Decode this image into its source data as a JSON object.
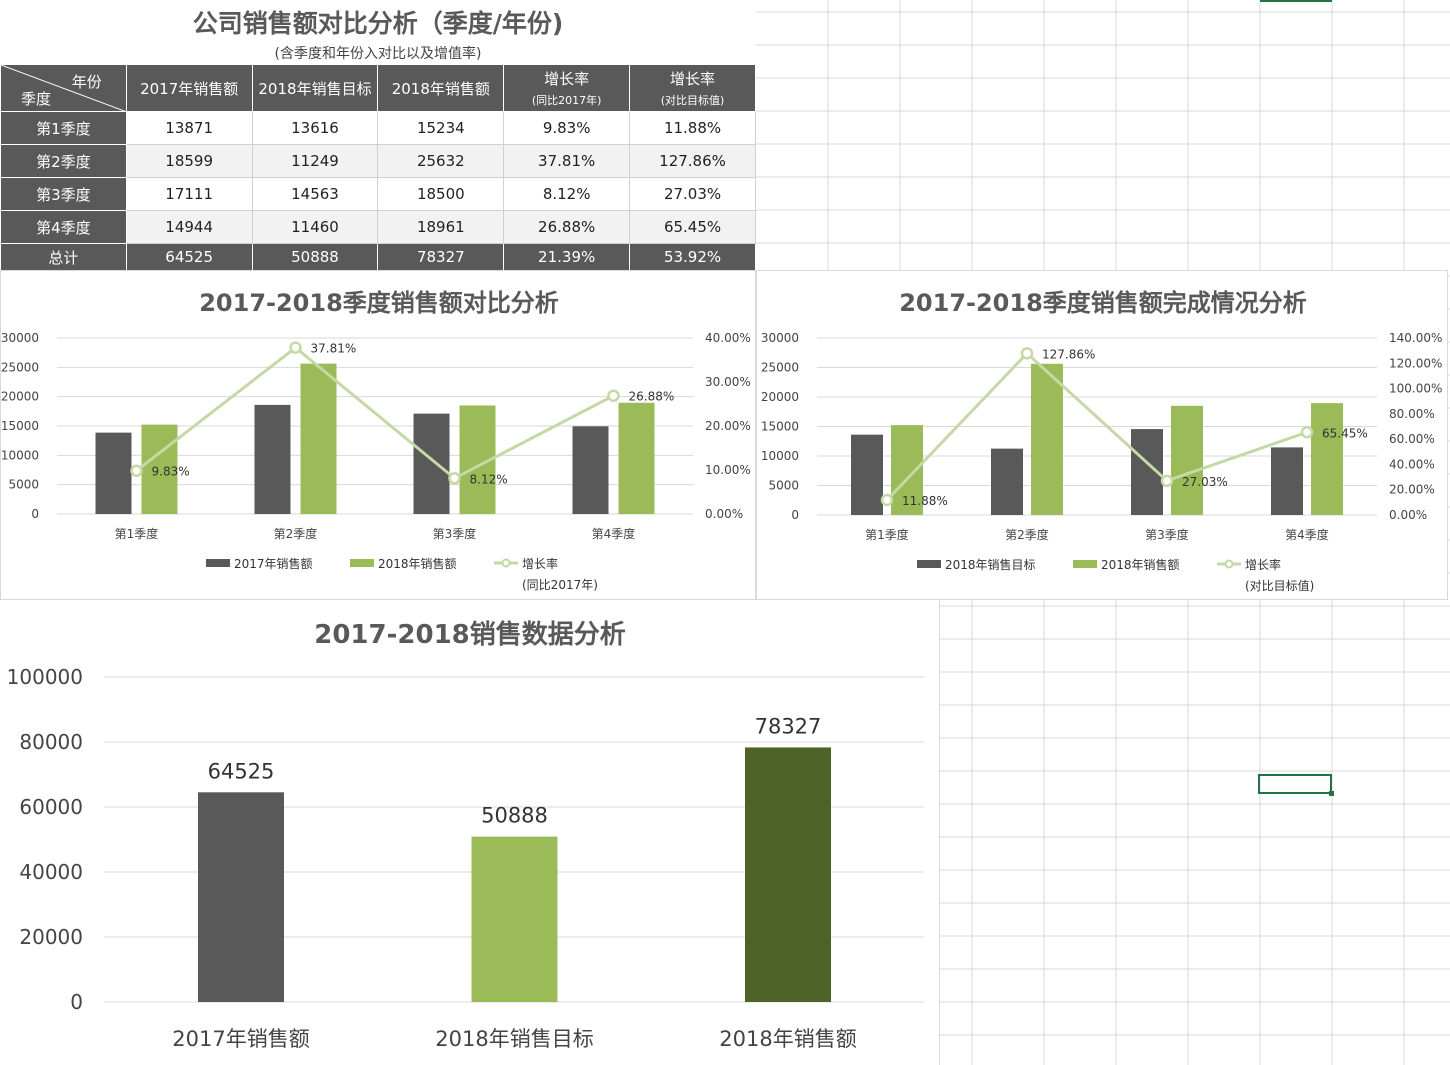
{
  "report": {
    "title": "公司销售额对比分析（季度/年份)",
    "subtitle": "(含季度和年份入对比以及增值率)"
  },
  "table": {
    "corner_top": "年份",
    "corner_bottom": "季度",
    "headers": [
      {
        "main": "2017年销售额",
        "sub": ""
      },
      {
        "main": "2018年销售目标",
        "sub": ""
      },
      {
        "main": "2018年销售额",
        "sub": ""
      },
      {
        "main": "增长率",
        "sub": "(同比2017年)"
      },
      {
        "main": "增长率",
        "sub": "(对比目标值)"
      }
    ],
    "rows": [
      {
        "label": "第1季度",
        "cells": [
          "13871",
          "13616",
          "15234",
          "9.83%",
          "11.88%"
        ]
      },
      {
        "label": "第2季度",
        "cells": [
          "18599",
          "11249",
          "25632",
          "37.81%",
          "127.86%"
        ]
      },
      {
        "label": "第3季度",
        "cells": [
          "17111",
          "14563",
          "18500",
          "8.12%",
          "27.03%"
        ]
      },
      {
        "label": "第4季度",
        "cells": [
          "14944",
          "11460",
          "18961",
          "26.88%",
          "65.45%"
        ]
      }
    ],
    "total": {
      "label": "总计",
      "cells": [
        "64525",
        "50888",
        "78327",
        "21.39%",
        "53.92%"
      ]
    }
  },
  "colors": {
    "dark": "#595959",
    "green": "#9bbb59",
    "line": "#c5d9a5",
    "darkgreen": "#4f6228",
    "selection": "#217346"
  },
  "chart_data": [
    {
      "type": "bar",
      "title": "2017-2018季度销售额对比分析",
      "categories": [
        "第1季度",
        "第2季度",
        "第3季度",
        "第4季度"
      ],
      "series": [
        {
          "name": "2017年销售额",
          "values": [
            13871,
            18599,
            17111,
            14944
          ],
          "kind": "bar"
        },
        {
          "name": "2018年销售额",
          "values": [
            15234,
            25632,
            18500,
            18961
          ],
          "kind": "bar"
        },
        {
          "name": "增长率",
          "values": [
            9.83,
            37.81,
            8.12,
            26.88
          ],
          "kind": "line",
          "axis": "right",
          "labels": [
            "9.83%",
            "37.81%",
            "8.12%",
            "26.88%"
          ]
        }
      ],
      "legend_line_note": "(同比2017年)",
      "ylim": [
        0,
        30000
      ],
      "yticks": [
        "30000",
        "25000",
        "20000",
        "15000",
        "10000",
        "5000",
        "0"
      ],
      "y2lim": [
        0,
        40
      ],
      "y2ticks": [
        "40.00%",
        "30.00%",
        "20.00%",
        "10.00%",
        "0.00%"
      ],
      "grid": true,
      "legend_position": "bottom"
    },
    {
      "type": "bar",
      "title": "2017-2018季度销售额完成情况分析",
      "categories": [
        "第1季度",
        "第2季度",
        "第3季度",
        "第4季度"
      ],
      "series": [
        {
          "name": "2018年销售目标",
          "values": [
            13616,
            11249,
            14563,
            11460
          ],
          "kind": "bar"
        },
        {
          "name": "2018年销售额",
          "values": [
            15234,
            25632,
            18500,
            18961
          ],
          "kind": "bar"
        },
        {
          "name": "增长率",
          "values": [
            11.88,
            127.86,
            27.03,
            65.45
          ],
          "kind": "line",
          "axis": "right",
          "labels": [
            "11.88%",
            "127.86%",
            "27.03%",
            "65.45%"
          ]
        }
      ],
      "legend_line_note": "(对比目标值)",
      "ylim": [
        0,
        30000
      ],
      "yticks": [
        "30000",
        "25000",
        "20000",
        "15000",
        "10000",
        "5000",
        "0"
      ],
      "y2lim": [
        0,
        140
      ],
      "y2ticks": [
        "140.00%",
        "120.00%",
        "100.00%",
        "80.00%",
        "60.00%",
        "40.00%",
        "20.00%",
        "0.00%"
      ],
      "grid": true,
      "legend_position": "bottom"
    },
    {
      "type": "bar",
      "title": "2017-2018销售数据分析",
      "categories": [
        "2017年销售额",
        "2018年销售目标",
        "2018年销售额"
      ],
      "values": [
        64525,
        50888,
        78327
      ],
      "labels": [
        "64525",
        "50888",
        "78327"
      ],
      "ylim": [
        0,
        100000
      ],
      "yticks": [
        "100000",
        "80000",
        "60000",
        "40000",
        "20000",
        "0"
      ],
      "grid": true
    }
  ]
}
